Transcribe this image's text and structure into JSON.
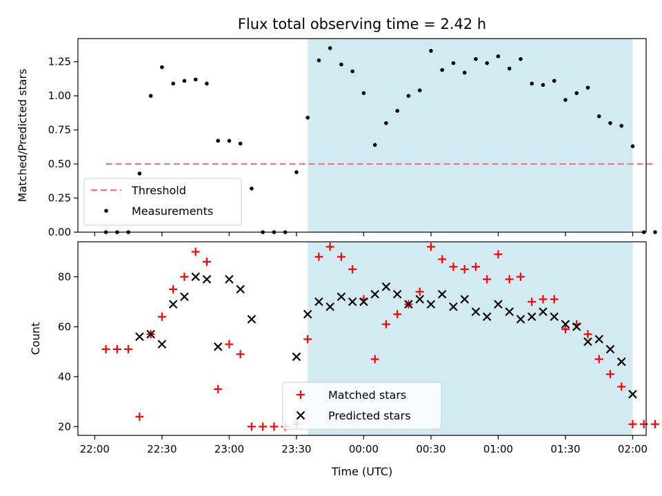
{
  "chart_data": [
    {
      "type": "scatter",
      "title": "Flux total observing time = 2.42 h",
      "ylabel": "Matched/Predicted stars",
      "xlabel": "",
      "ylim": [
        0,
        1.42
      ],
      "yticks": [
        "0.00",
        "0.25",
        "0.50",
        "0.75",
        "1.00",
        "1.25"
      ],
      "ytick_values": [
        0,
        0.25,
        0.5,
        0.75,
        1.0,
        1.25
      ],
      "shaded_span": [
        "23:35",
        "02:00"
      ],
      "shaded_color": "#add8e6",
      "threshold": {
        "name": "Threshold",
        "value": 0.5,
        "x_start": "22:05",
        "x_end": "02:10",
        "color": "#ff7070"
      },
      "series": [
        {
          "name": "Measurements",
          "marker": "dot",
          "color": "#000000",
          "x": [
            "22:05",
            "22:10",
            "22:15",
            "22:20",
            "22:25",
            "22:30",
            "22:35",
            "22:40",
            "22:45",
            "22:50",
            "22:55",
            "23:00",
            "23:05",
            "23:10",
            "23:15",
            "23:20",
            "23:25",
            "23:30",
            "23:35",
            "23:40",
            "23:45",
            "23:50",
            "23:55",
            "00:00",
            "00:05",
            "00:10",
            "00:15",
            "00:20",
            "00:25",
            "00:30",
            "00:35",
            "00:40",
            "00:45",
            "00:50",
            "00:55",
            "01:00",
            "01:05",
            "01:10",
            "01:15",
            "01:20",
            "01:25",
            "01:30",
            "01:35",
            "01:40",
            "01:45",
            "01:50",
            "01:55",
            "02:00",
            "02:05",
            "02:10"
          ],
          "values": [
            0,
            0,
            0,
            0.43,
            1.0,
            1.21,
            1.09,
            1.11,
            1.12,
            1.09,
            0.67,
            0.67,
            0.65,
            0.32,
            0,
            0,
            0,
            0.44,
            0.84,
            1.26,
            1.35,
            1.23,
            1.18,
            1.02,
            0.64,
            0.8,
            0.89,
            1.0,
            1.04,
            1.33,
            1.19,
            1.24,
            1.17,
            1.27,
            1.24,
            1.29,
            1.2,
            1.27,
            1.09,
            1.08,
            1.11,
            0.97,
            1.02,
            1.06,
            0.85,
            0.8,
            0.78,
            0.63,
            0,
            0
          ]
        }
      ],
      "legend": {
        "position": "lower-left",
        "entries": [
          "Threshold",
          "Measurements"
        ]
      }
    },
    {
      "type": "scatter",
      "title": "",
      "ylabel": "Count",
      "xlabel": "Time (UTC)",
      "ylim": [
        16.5,
        94
      ],
      "yticks": [
        "20",
        "40",
        "60",
        "80"
      ],
      "ytick_values": [
        20,
        40,
        60,
        80
      ],
      "xticks": [
        "22:00",
        "22:30",
        "23:00",
        "23:30",
        "00:00",
        "00:30",
        "01:00",
        "01:30",
        "02:00"
      ],
      "shaded_span": [
        "23:35",
        "02:00"
      ],
      "shaded_color": "#add8e6",
      "series": [
        {
          "name": "Matched stars",
          "marker": "plus",
          "color": "#ff0000",
          "x": [
            "22:05",
            "22:10",
            "22:15",
            "22:20",
            "22:25",
            "22:30",
            "22:35",
            "22:40",
            "22:45",
            "22:50",
            "22:55",
            "23:00",
            "23:05",
            "23:10",
            "23:15",
            "23:20",
            "23:25",
            "23:30",
            "23:35",
            "23:40",
            "23:45",
            "23:50",
            "23:55",
            "00:00",
            "00:05",
            "00:10",
            "00:15",
            "00:20",
            "00:25",
            "00:30",
            "00:35",
            "00:40",
            "00:45",
            "00:50",
            "00:55",
            "01:00",
            "01:05",
            "01:10",
            "01:15",
            "01:20",
            "01:25",
            "01:30",
            "01:35",
            "01:40",
            "01:45",
            "01:50",
            "01:55",
            "02:00",
            "02:05",
            "02:10"
          ],
          "values": [
            51,
            51,
            51,
            24,
            57,
            64,
            75,
            80,
            90,
            86,
            35,
            53,
            49,
            20,
            20,
            20,
            20,
            21,
            55,
            88,
            92,
            88,
            83,
            71,
            47,
            61,
            65,
            69,
            74,
            92,
            87,
            84,
            83,
            84,
            79,
            89,
            79,
            80,
            70,
            71,
            71,
            59,
            61,
            57,
            47,
            41,
            36,
            21,
            21,
            21
          ]
        },
        {
          "name": "Predicted stars",
          "marker": "x",
          "color": "#000000",
          "x": [
            "22:20",
            "22:25",
            "22:30",
            "22:35",
            "22:40",
            "22:45",
            "22:50",
            "22:55",
            "23:00",
            "23:05",
            "23:10",
            "23:30",
            "23:35",
            "23:40",
            "23:45",
            "23:50",
            "23:55",
            "00:00",
            "00:05",
            "00:10",
            "00:15",
            "00:20",
            "00:25",
            "00:30",
            "00:35",
            "00:40",
            "00:45",
            "00:50",
            "00:55",
            "01:00",
            "01:05",
            "01:10",
            "01:15",
            "01:20",
            "01:25",
            "01:30",
            "01:35",
            "01:40",
            "01:45",
            "01:50",
            "01:55",
            "02:00"
          ],
          "values": [
            56,
            57,
            53,
            69,
            72,
            80,
            79,
            52,
            79,
            75,
            63,
            48,
            65,
            70,
            68,
            72,
            70,
            70,
            73,
            76,
            73,
            69,
            71,
            69,
            73,
            68,
            71,
            66,
            64,
            69,
            66,
            63,
            64,
            66,
            64,
            61,
            60,
            54,
            55,
            51,
            46,
            33
          ]
        }
      ],
      "legend": {
        "position": "lower-center",
        "entries": [
          "Matched stars",
          "Predicted stars"
        ]
      }
    }
  ]
}
